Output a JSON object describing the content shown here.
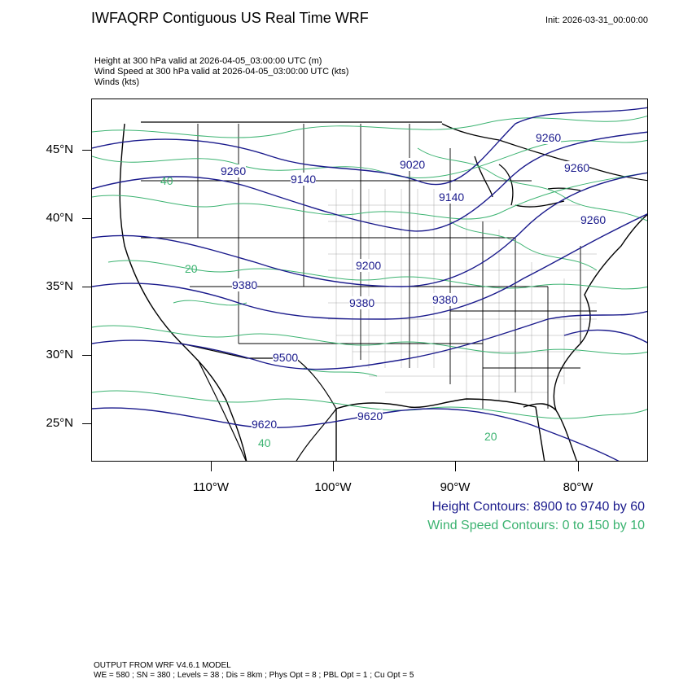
{
  "header": {
    "title": "IWFAQRP Contiguous US Real Time WRF",
    "init": "Init: 2026-03-31_00:00:00"
  },
  "fields": [
    "Height at 300 hPa valid at 2026-04-05_03:00:00 UTC   (m)",
    "Wind Speed at 300 hPa valid at 2026-04-05_03:00:00 UTC   (kts)",
    "Winds   (kts)"
  ],
  "map": {
    "lat_labels": [
      "45°N",
      "40°N",
      "35°N",
      "30°N",
      "25°N"
    ],
    "lon_labels": [
      "110°W",
      "100°W",
      "90°W",
      "80°W"
    ],
    "height_contour_labels": [
      "9260",
      "9140",
      "9020",
      "9260",
      "9200",
      "9380",
      "9380",
      "9260",
      "9500",
      "9620",
      "9620",
      "9260",
      "9140",
      "9380"
    ],
    "wind_contour_labels": [
      "40",
      "20",
      "20",
      "40"
    ],
    "colors": {
      "height_contour": "#1a1a8c",
      "wind_contour": "#3cb371",
      "borders": "#000000"
    }
  },
  "legend": {
    "height": "Height Contours: 8900 to 9740 by 60",
    "wind": "Wind Speed Contours: 0 to 150 by 10"
  },
  "footer": {
    "line1": "OUTPUT FROM WRF V4.6.1 MODEL",
    "line2": "WE = 580 ; SN = 380 ; Levels = 38 ; Dis = 8km ; Phys Opt = 8 ; PBL Opt = 1 ; Cu Opt = 5"
  }
}
